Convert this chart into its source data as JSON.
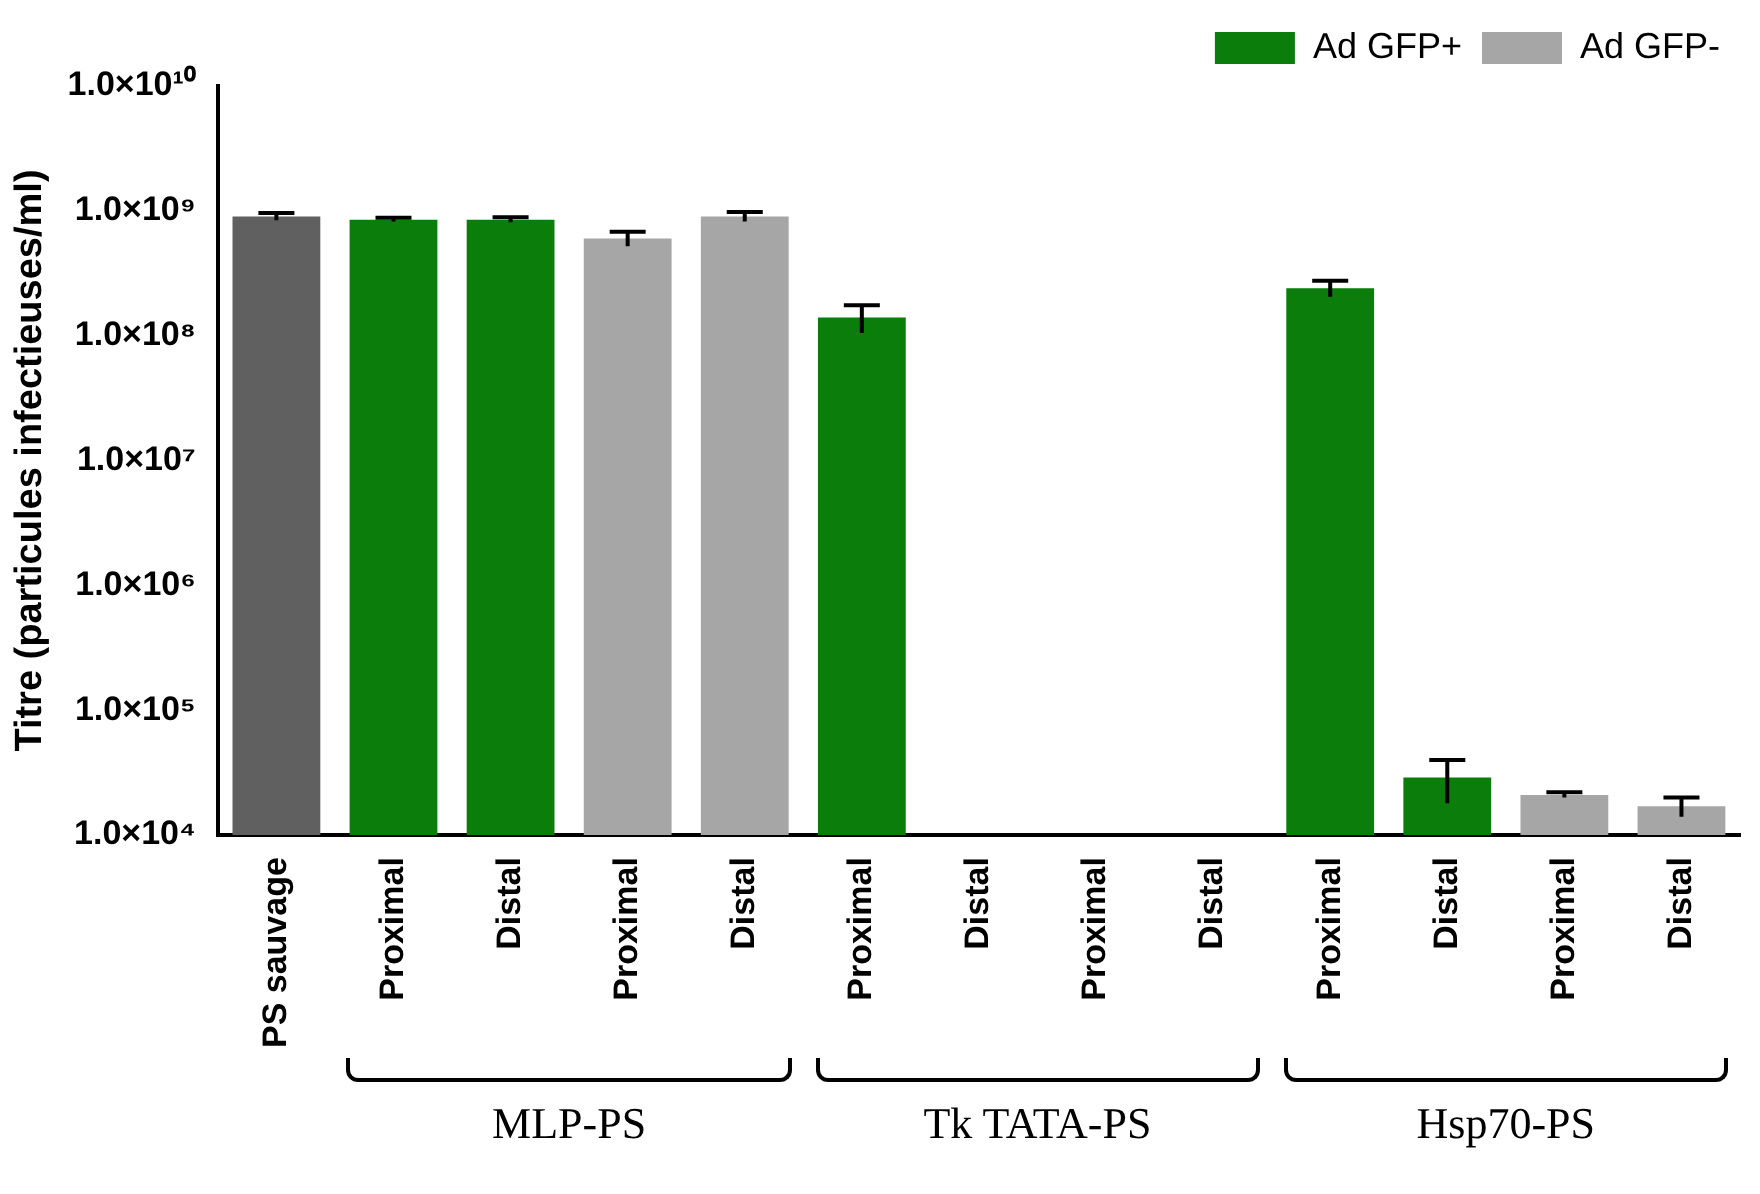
{
  "chart_data": {
    "type": "bar",
    "ylabel": "Titre (particules infectieuses/ml)",
    "categories": [
      "PS sauvage",
      "Proximal",
      "Distal",
      "Proximal",
      "Distal",
      "Proximal",
      "Distal",
      "Proximal",
      "Distal",
      "Proximal",
      "Distal",
      "Proximal",
      "Distal"
    ],
    "series": [
      {
        "color": "#606060",
        "values": [
          900000000.0,
          null,
          null,
          null,
          null,
          null,
          null,
          null,
          null,
          null,
          null,
          null,
          null
        ],
        "errors": [
          60000000.0,
          null,
          null,
          null,
          null,
          null,
          null,
          null,
          null,
          null,
          null,
          null,
          null
        ]
      },
      {
        "name": "Ad GFP+",
        "color": "#0a7d0a",
        "values": [
          null,
          850000000.0,
          850000000.0,
          null,
          null,
          140000000.0,
          null,
          null,
          null,
          240000000.0,
          29000.0,
          null,
          null
        ],
        "errors": [
          null,
          30000000.0,
          40000000.0,
          null,
          null,
          35000000.0,
          null,
          null,
          null,
          35000000.0,
          11000.0,
          null,
          null
        ]
      },
      {
        "name": "Ad GFP-",
        "color": "#a6a6a6",
        "values": [
          null,
          null,
          null,
          600000000.0,
          900000000.0,
          null,
          null,
          null,
          null,
          null,
          null,
          21000.0,
          17000.0
        ],
        "errors": [
          null,
          null,
          null,
          80000000.0,
          80000000.0,
          null,
          null,
          null,
          null,
          null,
          null,
          1000.0,
          3000.0
        ]
      }
    ],
    "log": true,
    "ylim": [
      10000.0,
      10000000000.0
    ],
    "yticks": [
      {
        "value": 10000.0,
        "label": "1.0×10⁴"
      },
      {
        "value": 100000.0,
        "label": "1.0×10⁵"
      },
      {
        "value": 1000000.0,
        "label": "1.0×10⁶"
      },
      {
        "value": 10000000.0,
        "label": "1.0×10⁷"
      },
      {
        "value": 100000000.0,
        "label": "1.0×10⁸"
      },
      {
        "value": 1000000000.0,
        "label": "1.0×10⁹"
      },
      {
        "value": 10000000000.0,
        "label": "1.0×10¹⁰"
      }
    ],
    "annotations": [
      "MLP-PS",
      "Tk TATA-PS",
      "Hsp70-PS"
    ],
    "legend": "top right",
    "grid": false
  }
}
